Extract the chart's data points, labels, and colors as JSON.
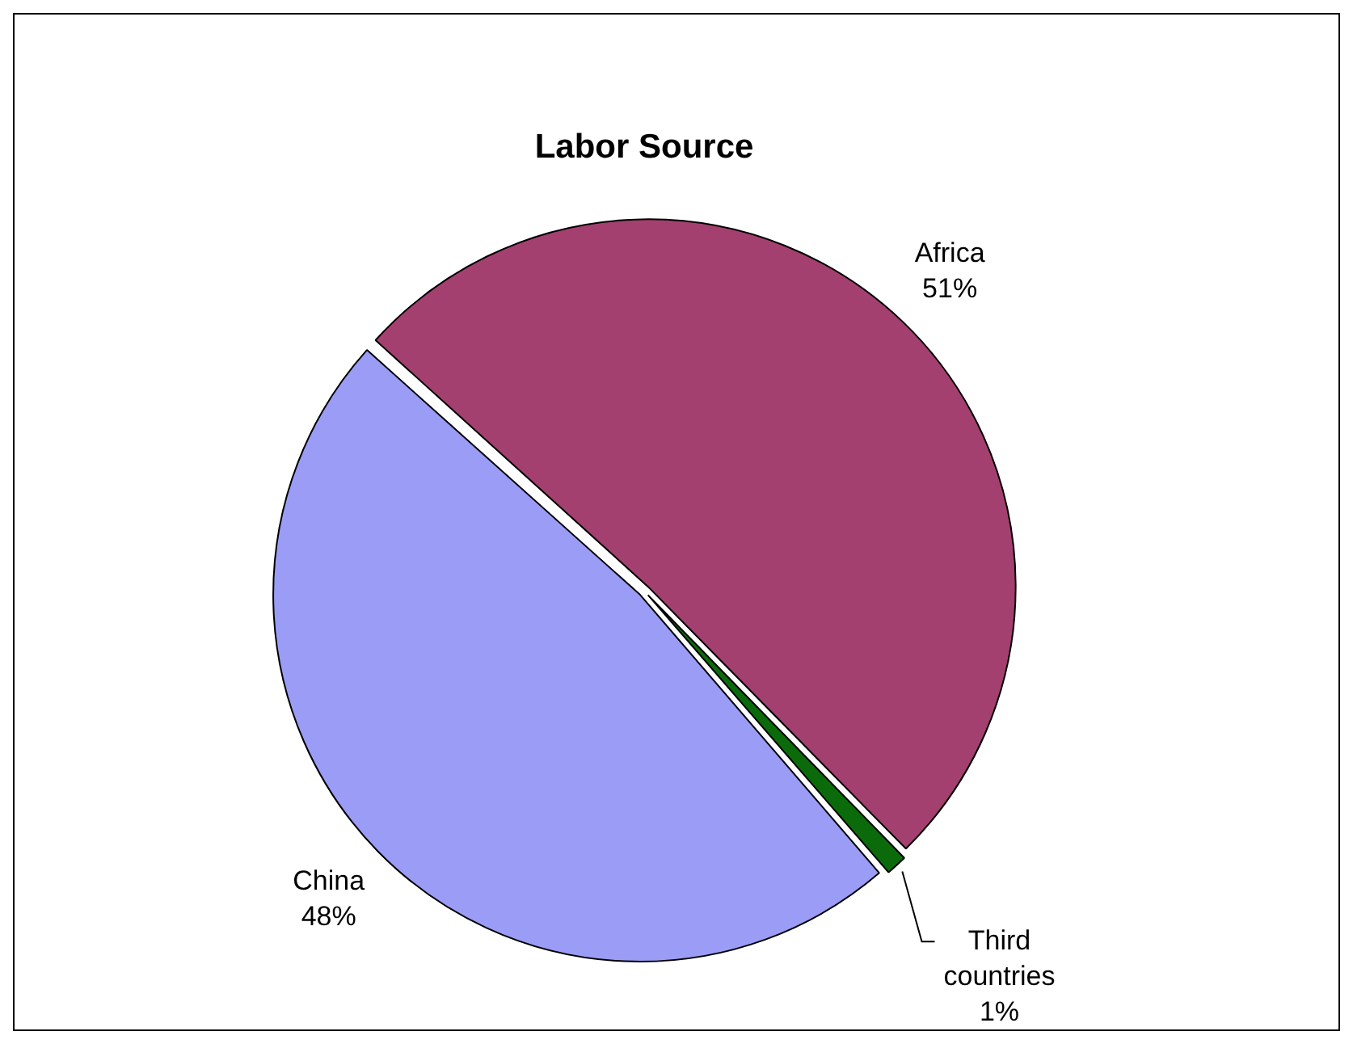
{
  "chart_data": {
    "type": "pie",
    "title": "Labor Source",
    "categories": [
      "Africa",
      "Third countries",
      "China"
    ],
    "values": [
      51,
      1,
      48
    ],
    "value_labels": [
      "51%",
      "1%",
      "48%"
    ],
    "colors": [
      "#a3406f",
      "#0b6b0b",
      "#9a9cf6"
    ],
    "legend": false
  }
}
